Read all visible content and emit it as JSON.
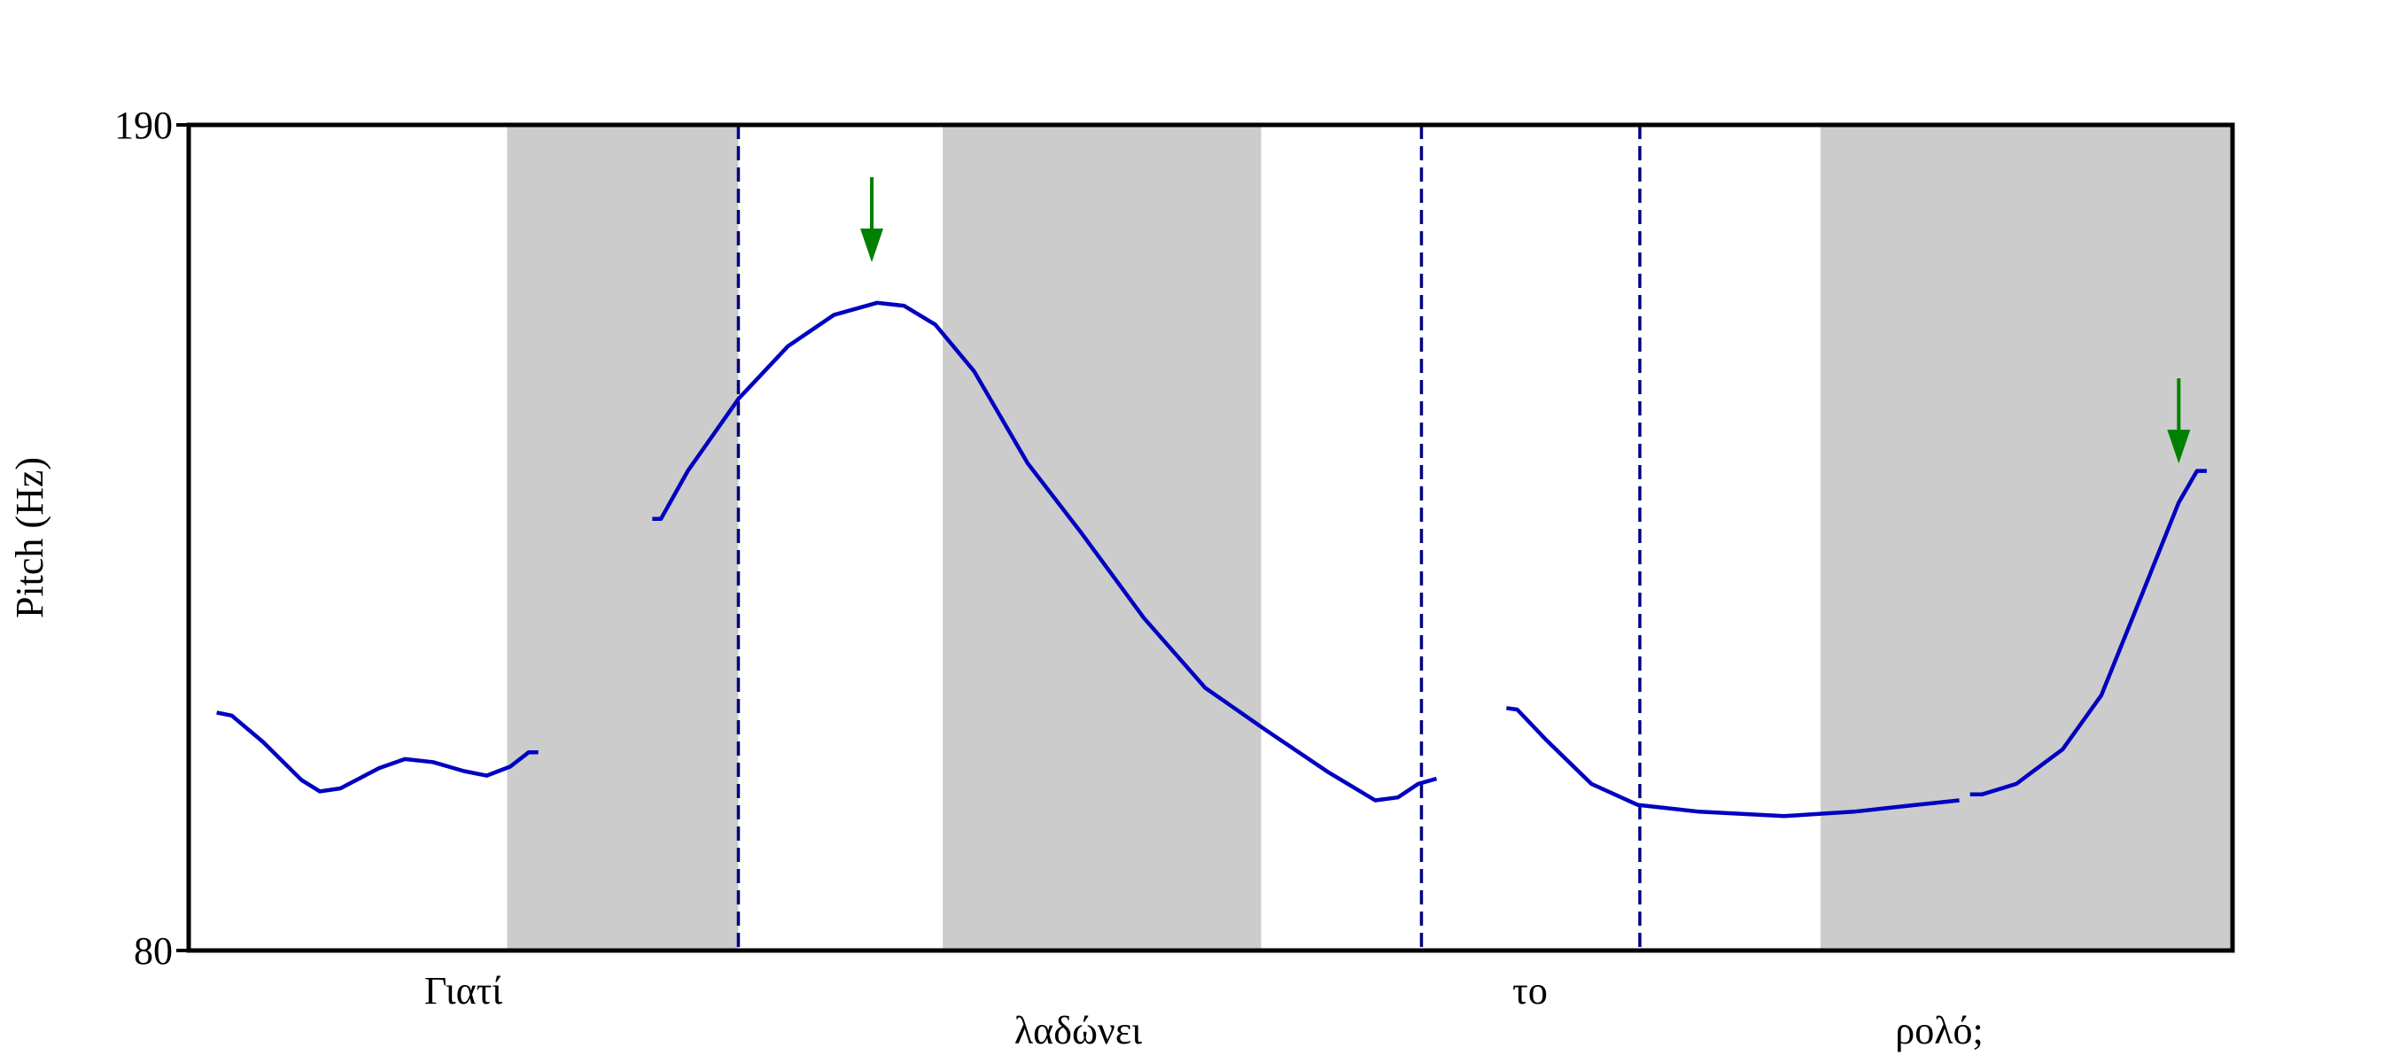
{
  "chart_data": {
    "type": "line",
    "y_label": "Pitch (Hz)",
    "ylim": [
      80,
      190
    ],
    "yticks": [
      80,
      190
    ],
    "xlim": [
      0,
      1.9
    ],
    "words": [
      "Γιατί",
      "λαδώνει",
      "το",
      "ρολό;"
    ],
    "shaded_intervals": [
      [
        0.296,
        0.511
      ],
      [
        0.701,
        0.997
      ],
      [
        1.517,
        1.9
      ]
    ],
    "shade_color": "#cccccc",
    "boundaries": [
      0.511,
      1.146,
      1.349
    ],
    "boundary_color": "#000080",
    "arrows": [
      {
        "x": 0.635,
        "y": 171.7
      },
      {
        "x": 1.85,
        "y": 144.9
      }
    ],
    "arrow_color": "#008000",
    "series": [
      {
        "color": "#0000c0",
        "x": [
          0.026,
          0.04,
          0.069,
          0.105,
          0.122,
          0.141,
          0.177,
          0.201,
          0.227,
          0.256,
          0.277,
          0.299,
          0.316,
          0.325
        ],
        "values": [
          111.7,
          111.3,
          107.8,
          102.7,
          101.2,
          101.6,
          104.3,
          105.5,
          105.1,
          103.9,
          103.3,
          104.5,
          106.4,
          106.4
        ]
      },
      {
        "color": "#0000c0",
        "x": [
          0.431,
          0.439,
          0.464,
          0.511,
          0.557,
          0.6,
          0.64,
          0.665,
          0.694,
          0.73,
          0.78,
          0.83,
          0.888,
          0.945,
          1.002,
          1.06,
          1.103,
          1.124,
          1.143,
          1.16
        ],
        "values": [
          137.5,
          137.5,
          143.9,
          153.5,
          160.5,
          164.7,
          166.3,
          165.9,
          163.4,
          157.2,
          144.9,
          135.6,
          124.3,
          115.0,
          109.3,
          103.7,
          100.0,
          100.4,
          102.2,
          102.9
        ]
      },
      {
        "color": "#0000c0",
        "x": [
          1.225,
          1.235,
          1.261,
          1.304,
          1.347,
          1.404,
          1.483,
          1.548,
          1.606,
          1.646
        ],
        "values": [
          112.3,
          112.1,
          108.2,
          102.2,
          99.4,
          98.5,
          97.9,
          98.5,
          99.4,
          100.0
        ]
      },
      {
        "color": "#0000c0",
        "x": [
          1.656,
          1.667,
          1.699,
          1.742,
          1.778,
          1.814,
          1.85,
          1.867,
          1.876
        ],
        "values": [
          100.8,
          100.8,
          102.2,
          106.8,
          114.0,
          126.8,
          139.7,
          143.9,
          143.9
        ]
      }
    ]
  }
}
